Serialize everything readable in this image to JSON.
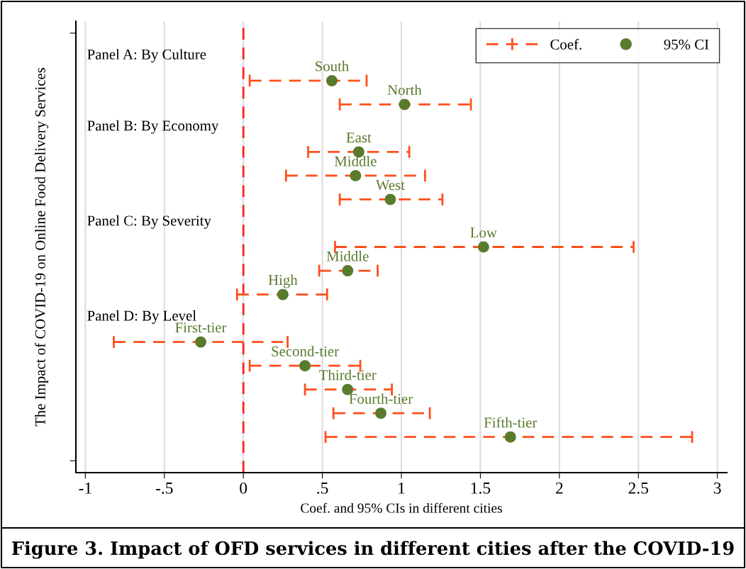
{
  "chart_data": {
    "type": "scatter",
    "orientation": "horizontal",
    "title": "Figure 3. Impact of OFD services in different cities after the COVID-19",
    "xlabel": "Coef. and 95% CIs in different cities",
    "ylabel": "The Impact of COVID-19 on Online Food Delivery Services",
    "categories": [
      null,
      null,
      null,
      null,
      null,
      null,
      null,
      null,
      null,
      null,
      null,
      null,
      null,
      null,
      null,
      null,
      null,
      null,
      null
    ],
    "annotations": [
      "Panel A: By Culture",
      "Panel B: By Economy",
      "Panel C: By Severity",
      "Panel D: By Level"
    ],
    "series": [
      {
        "name": "Coef.",
        "color": "#ff4f1a",
        "line_style": "dashed",
        "values": [
          null,
          null,
          null,
          null,
          null,
          null,
          null,
          null,
          null,
          null,
          null,
          null,
          null,
          null,
          null,
          null,
          null,
          null,
          null
        ]
      },
      {
        "name": "95% CI",
        "color": "#5a7a2e",
        "marker": "circle",
        "values": [
          null,
          null,
          0.56,
          1.02,
          null,
          0.73,
          0.71,
          0.93,
          null,
          1.52,
          0.66,
          0.25,
          null,
          -0.27,
          0.39,
          0.66,
          0.87,
          1.69,
          null
        ],
        "errors": [
          null,
          null,
          [
            0.04,
            0.78
          ],
          [
            0.61,
            1.44
          ],
          null,
          [
            0.41,
            1.05
          ],
          [
            0.27,
            1.15
          ],
          [
            0.61,
            1.26
          ],
          null,
          [
            0.58,
            2.47
          ],
          [
            0.48,
            0.85
          ],
          [
            -0.04,
            0.53
          ],
          null,
          [
            -0.82,
            0.28
          ],
          [
            0.04,
            0.74
          ],
          [
            0.39,
            0.94
          ],
          [
            0.57,
            1.18
          ],
          [
            0.52,
            2.84
          ],
          null
        ],
        "value_labels": [
          null,
          null,
          "South",
          "North",
          null,
          "East",
          "Middle",
          "West",
          null,
          "Low",
          "Middle",
          "High",
          null,
          "First-tier",
          "Second-tier",
          "Third-tier",
          "Fourth-tier",
          "Fifth-tier",
          null
        ]
      }
    ],
    "xlim": [
      -1.06,
      3.06
    ],
    "xticks": [
      -1,
      {
        "value": -0.5,
        "label": "-.5"
      },
      0,
      {
        "value": 0.5,
        "label": ".5"
      },
      1,
      1.5,
      2,
      2.5,
      3
    ],
    "tick_labels": "x",
    "ref_lines": [
      {
        "axis": "x",
        "value": 0,
        "color": "#ff2020",
        "line_style": "dashed"
      }
    ],
    "grid": "x",
    "legend": "top right"
  }
}
